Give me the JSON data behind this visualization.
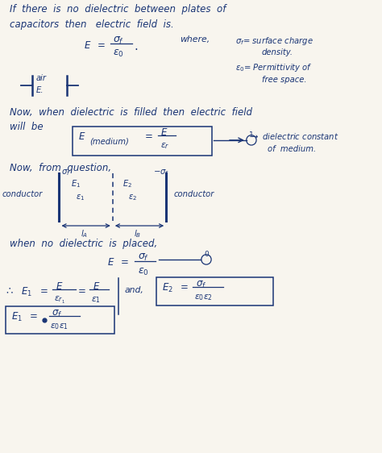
{
  "bg_color": "#f8f5ee",
  "text_color": "#1a3575",
  "fig_width": 4.74,
  "fig_height": 5.62,
  "dpi": 100,
  "xlim": [
    0,
    10
  ],
  "ylim": [
    0,
    11.8
  ]
}
